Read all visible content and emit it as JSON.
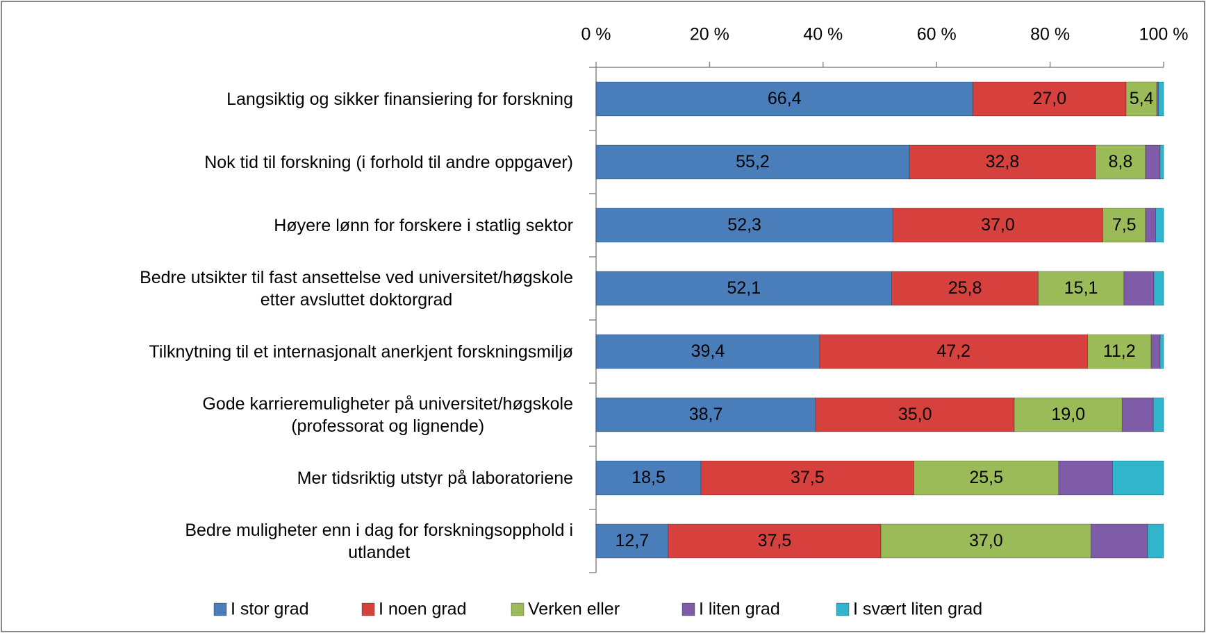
{
  "chart_data": {
    "type": "stacked_barh",
    "categories": [
      "Langsiktig og sikker finansiering for forskning",
      "Nok tid til forskning (i forhold til andre oppgaver)",
      "Høyere lønn for forskere i statlig sektor",
      "Bedre utsikter til fast ansettelse ved universitet/høgskole\netter avsluttet doktorgrad",
      "Tilknytning til et internasjonalt anerkjent forskningsmiljø",
      "Gode karrieremuligheter på universitet/høgskole\n(professorat og lignende)",
      "Mer tidsriktig utstyr på laboratoriene",
      "Bedre muligheter enn i dag for forskningsopphold i\nutlandet"
    ],
    "series": [
      {
        "name": "I stor grad",
        "color": "#4a7ebb",
        "values": [
          66.4,
          55.2,
          52.3,
          52.1,
          39.4,
          38.7,
          18.5,
          12.7
        ],
        "value_labels": [
          "66,4",
          "55,2",
          "52,3",
          "52,1",
          "39,4",
          "38,7",
          "18,5",
          "12,7"
        ]
      },
      {
        "name": "I noen grad",
        "color": "#d6403d",
        "values": [
          27.0,
          32.8,
          37.0,
          25.8,
          47.2,
          35.0,
          37.5,
          37.5
        ],
        "value_labels": [
          "27,0",
          "32,8",
          "37,0",
          "25,8",
          "47,2",
          "35,0",
          "37,5",
          "37,5"
        ]
      },
      {
        "name": "Verken eller",
        "color": "#9bbb59",
        "values": [
          5.4,
          8.8,
          7.5,
          15.1,
          11.2,
          19.0,
          25.5,
          37.0
        ],
        "value_labels": [
          "5,4",
          "8,8",
          "7,5",
          "15,1",
          "11,2",
          "19,0",
          "25,5",
          "37,0"
        ]
      },
      {
        "name": "I liten grad",
        "color": "#7e5ca7",
        "values": [
          0.3,
          2.6,
          1.8,
          5.3,
          1.6,
          5.5,
          9.5,
          10.0
        ]
      },
      {
        "name": "I svært liten grad",
        "color": "#31b5cc",
        "values": [
          0.9,
          0.6,
          1.4,
          1.7,
          0.6,
          1.8,
          9.0,
          2.8
        ]
      }
    ],
    "xlim": [
      0,
      100
    ],
    "xticks": [
      {
        "value": 0,
        "label": "0 %"
      },
      {
        "value": 20,
        "label": "20 %"
      },
      {
        "value": 40,
        "label": "40 %"
      },
      {
        "value": 60,
        "label": "60 %"
      },
      {
        "value": 80,
        "label": "80 %"
      },
      {
        "value": 100,
        "label": "100 %"
      }
    ],
    "grid": false,
    "legend": "bottom"
  }
}
